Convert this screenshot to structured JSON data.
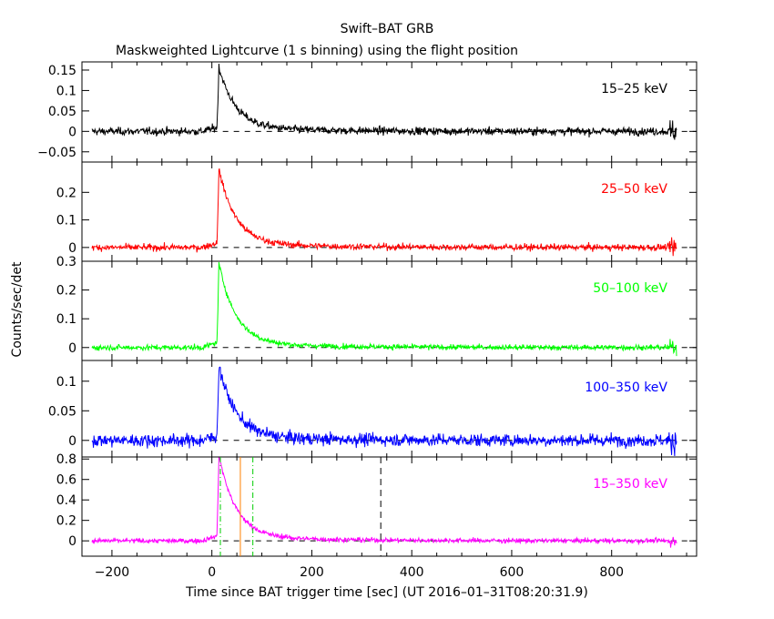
{
  "title": "Swift–BAT GRB",
  "subtitle": "Maskweighted Lightcurve (1 s binning) using the flight position",
  "xlabel": "Time since BAT trigger time [sec] (UT 2016–01–31T08:20:31.9)",
  "ylabel": "Counts/sec/det",
  "chart_data": {
    "type": "line",
    "xlim": [
      -260,
      970
    ],
    "x_ticks": [
      -200,
      0,
      200,
      400,
      600,
      800
    ],
    "x_tick_labels": [
      "−200",
      "0",
      "200",
      "400",
      "600",
      "800"
    ],
    "data_range": [
      -240,
      930
    ],
    "bin_seconds": 1,
    "panels": [
      {
        "band": "15–25 keV",
        "color": "#000000",
        "ylim": [
          -0.075,
          0.17
        ],
        "y_ticks": [
          -0.05,
          0,
          0.05,
          0.1,
          0.15
        ],
        "y_tick_labels": [
          "−0.05",
          "0",
          "0.05",
          "0.1",
          "0.15"
        ],
        "peak": 0.15,
        "noise": 0.008
      },
      {
        "band": "25–50 keV",
        "color": "#ff0000",
        "ylim": [
          -0.05,
          0.31
        ],
        "y_ticks": [
          0,
          0.1,
          0.2
        ],
        "y_tick_labels": [
          "0",
          "0.1",
          "0.2"
        ],
        "peak": 0.27,
        "noise": 0.01
      },
      {
        "band": "50–100 keV",
        "color": "#00ff00",
        "ylim": [
          -0.045,
          0.3
        ],
        "y_ticks": [
          0,
          0.1,
          0.2,
          0.3
        ],
        "y_tick_labels": [
          "0",
          "0.1",
          "0.2",
          "0.3"
        ],
        "peak": 0.28,
        "noise": 0.008
      },
      {
        "band": "100–350 keV",
        "color": "#0000ff",
        "ylim": [
          -0.028,
          0.135
        ],
        "y_ticks": [
          0,
          0.05,
          0.1
        ],
        "y_tick_labels": [
          "0",
          "0.05",
          "0.1"
        ],
        "peak": 0.12,
        "noise": 0.009
      },
      {
        "band": "15–350 keV",
        "color": "#ff00ff",
        "ylim": [
          -0.15,
          0.82
        ],
        "y_ticks": [
          0,
          0.2,
          0.4,
          0.6,
          0.8
        ],
        "y_tick_labels": [
          "0",
          "0.2",
          "0.4",
          "0.6",
          "0.8"
        ],
        "peak": 0.8,
        "noise": 0.02
      }
    ],
    "markers": [
      {
        "x": 17,
        "color": "#00cc00",
        "style": "dash-dot"
      },
      {
        "x": 57,
        "color": "#ff8000",
        "style": "solid"
      },
      {
        "x": 82,
        "color": "#00cc00",
        "style": "dash-dot"
      },
      {
        "x": 338,
        "color": "#000000",
        "style": "dashed"
      }
    ]
  }
}
